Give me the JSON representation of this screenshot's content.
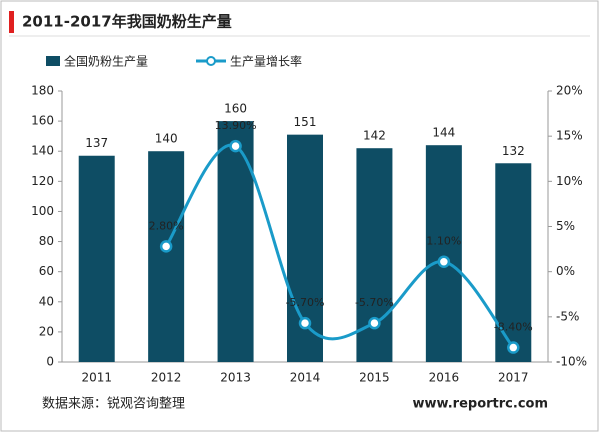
{
  "chart_data": {
    "type": "bar",
    "title": "2011-2017年我国奶粉生产量",
    "categories": [
      "2011",
      "2012",
      "2013",
      "2014",
      "2015",
      "2016",
      "2017"
    ],
    "series": [
      {
        "name": "全国奶粉生产量",
        "type": "bar",
        "color": "#0e4d64",
        "values": [
          137,
          140,
          160,
          151,
          142,
          144,
          132
        ]
      },
      {
        "name": "生产量增长率",
        "type": "line",
        "axis": "y2",
        "color": "#1a9bc9",
        "values": [
          null,
          2.8,
          13.9,
          -5.7,
          -5.7,
          1.1,
          -8.4
        ],
        "value_labels": [
          null,
          "2.80%",
          "13.90%",
          "-5.70%",
          "-5.70%",
          "1.10%",
          "-8.40%"
        ]
      }
    ],
    "ylim": [
      0,
      180
    ],
    "yticks": [
      0,
      20,
      40,
      60,
      80,
      100,
      120,
      140,
      160,
      180
    ],
    "y2lim": [
      -10,
      20
    ],
    "y2ticks": [
      {
        "value": -10,
        "label": "-10%"
      },
      {
        "value": -5,
        "label": "-5%"
      },
      {
        "value": 0,
        "label": "0%"
      },
      {
        "value": 5,
        "label": "5%"
      },
      {
        "value": 10,
        "label": "10%"
      },
      {
        "value": 15,
        "label": "15%"
      },
      {
        "value": 20,
        "label": "20%"
      }
    ],
    "source": "数据来源：锐观咨询整理",
    "website": "www.reportrc.com"
  }
}
